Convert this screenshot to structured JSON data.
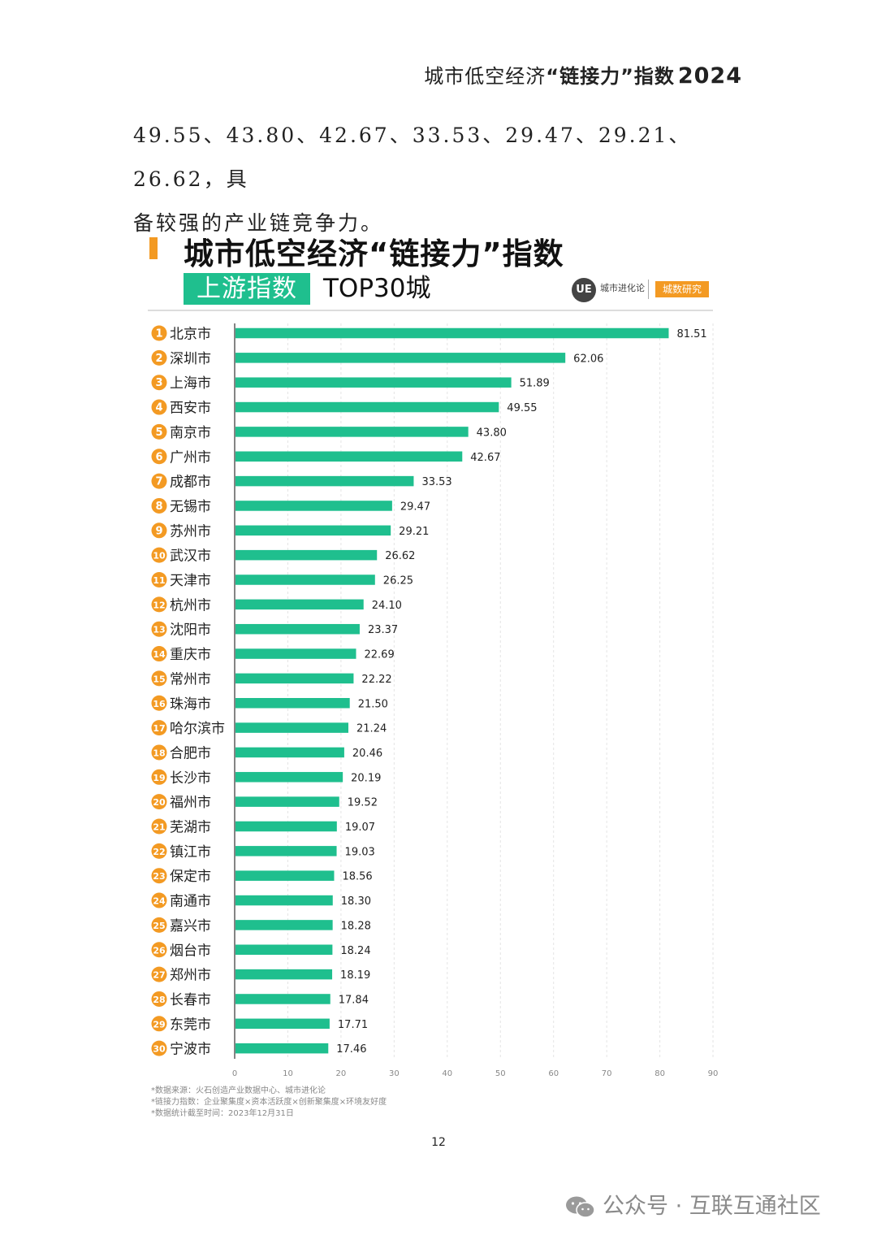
{
  "header": {
    "prefix": "城市低空经济",
    "highlight": "“链接力”指数",
    "year": "2024"
  },
  "paragraph": {
    "line1": "49.55、43.80、42.67、33.53、29.47、29.21、26.62，具",
    "line2": "备较强的产业链竞争力。"
  },
  "chart_data": {
    "type": "bar",
    "orientation": "horizontal",
    "title": "城市低空经济“链接力”指数",
    "badge": "上游指数",
    "subtitle": "TOP30城",
    "categories": [
      "北京市",
      "深圳市",
      "上海市",
      "西安市",
      "南京市",
      "广州市",
      "成都市",
      "无锡市",
      "苏州市",
      "武汉市",
      "天津市",
      "杭州市",
      "沈阳市",
      "重庆市",
      "常州市",
      "珠海市",
      "哈尔滨市",
      "合肥市",
      "长沙市",
      "福州市",
      "芜湖市",
      "镇江市",
      "保定市",
      "南通市",
      "嘉兴市",
      "烟台市",
      "郑州市",
      "长春市",
      "东莞市",
      "宁波市"
    ],
    "values": [
      81.51,
      62.06,
      51.89,
      49.55,
      43.8,
      42.67,
      33.53,
      29.47,
      29.21,
      26.62,
      26.25,
      24.1,
      23.37,
      22.69,
      22.22,
      21.5,
      21.24,
      20.46,
      20.19,
      19.52,
      19.07,
      19.03,
      18.56,
      18.3,
      18.28,
      18.24,
      18.19,
      17.84,
      17.71,
      17.46
    ],
    "value_labels": [
      "81.51",
      "62.06",
      "51.89",
      "49.55",
      "43.80",
      "42.67",
      "33.53",
      "29.47",
      "29.21",
      "26.62",
      "26.25",
      "24.10",
      "23.37",
      "22.69",
      "22.22",
      "21.50",
      "21.24",
      "20.46",
      "20.19",
      "19.52",
      "19.07",
      "19.03",
      "18.56",
      "18.30",
      "18.28",
      "18.24",
      "18.19",
      "17.84",
      "17.71",
      "17.46"
    ],
    "xlim": [
      0,
      90
    ],
    "xticks": [
      "0",
      "10",
      "20",
      "30",
      "40",
      "50",
      "60",
      "70",
      "80",
      "90"
    ],
    "grid": true,
    "xlabel": "",
    "ylabel": ""
  },
  "colors": {
    "bar": "#1fbf8e",
    "rank_badge": "#f39a23",
    "accent_orange": "#f39a23",
    "grid": "#e4e4e4"
  },
  "logo": {
    "mark": "UE",
    "name": "城市进化论",
    "badge": "城数研究"
  },
  "notes": [
    "*数据来源：火石创造产业数据中心、城市进化论",
    "*链接力指数：企业聚集度×资本活跃度×创新聚集度×环境友好度",
    "*数据统计截至时间：2023年12月31日"
  ],
  "page_number": "12",
  "watermark": "公众号 · 互联互通社区"
}
